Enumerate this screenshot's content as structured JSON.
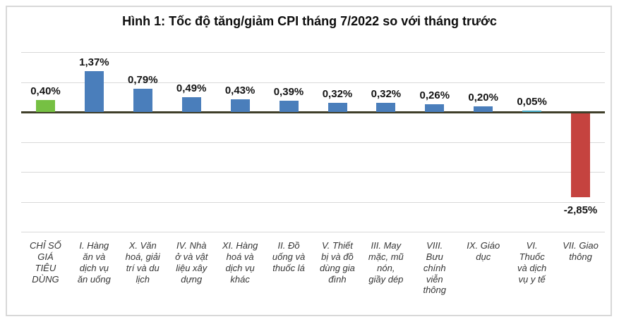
{
  "figure": {
    "title": "Hình 1: Tốc độ tăng/giảm CPI tháng 7/2022 so với tháng trước"
  },
  "chart_data": {
    "type": "bar",
    "title": "Hình 1: Tốc độ tăng/giảm CPI tháng 7/2022 so với tháng trước",
    "xlabel": "",
    "ylabel": "",
    "unit": "%",
    "decimal_separator": ",",
    "grid": true,
    "legend": false,
    "ylim": [
      -4,
      2.15
    ],
    "gridline_values": [
      2,
      1,
      -1,
      -2,
      -3,
      -4
    ],
    "categories": [
      "CHỈ SỐ GIÁ TIÊU DÙNG",
      "I. Hàng ăn và dịch vụ ăn uống",
      "X. Văn hoá, giải trí và du lịch",
      "IV. Nhà ở và vật liệu xây dựng",
      "XI. Hàng hoá và dịch vụ khác",
      "II. Đồ uống và thuốc lá",
      "V. Thiết bị và đồ dùng gia đình",
      "III. May mặc, mũ nón, giầy dép",
      "VIII. Bưu chính viễn thông",
      "IX. Giáo dục",
      "VI. Thuốc và dịch vụ y tế",
      "VII. Giao thông"
    ],
    "category_label_lines": [
      [
        "CHỈ SỐ",
        "GIÁ",
        "TIÊU",
        "DÙNG"
      ],
      [
        "I. Hàng",
        "ăn và",
        "dịch vụ",
        "ăn uống"
      ],
      [
        "X. Văn",
        "hoá, giải",
        "trí và du",
        "lịch"
      ],
      [
        "IV. Nhà",
        "ở và vật",
        "liệu xây",
        "dựng"
      ],
      [
        "XI. Hàng",
        "hoá và",
        "dịch vụ",
        "khác"
      ],
      [
        "II. Đồ",
        "uống và",
        "thuốc lá"
      ],
      [
        "V. Thiết",
        "bị và đồ",
        "dùng gia",
        "đình"
      ],
      [
        "III. May",
        "mặc, mũ",
        "nón,",
        "giầy dép"
      ],
      [
        "VIII.",
        "Bưu",
        "chính",
        "viễn",
        "thông"
      ],
      [
        "IX. Giáo",
        "dục"
      ],
      [
        "VI.",
        "Thuốc",
        "và dịch",
        "vụ y tế"
      ],
      [
        "VII. Giao",
        "thông"
      ]
    ],
    "values": [
      0.4,
      1.37,
      0.79,
      0.49,
      0.43,
      0.39,
      0.32,
      0.32,
      0.26,
      0.2,
      0.05,
      -2.85
    ],
    "value_labels": [
      "0,40%",
      "1,37%",
      "0,79%",
      "0,49%",
      "0,43%",
      "0,39%",
      "0,32%",
      "0,32%",
      "0,26%",
      "0,20%",
      "0,05%",
      "-2,85%"
    ],
    "bar_colors": [
      "#76C043",
      "#4A7EBB",
      "#4A7EBB",
      "#4A7EBB",
      "#4A7EBB",
      "#4A7EBB",
      "#4A7EBB",
      "#4A7EBB",
      "#4A7EBB",
      "#4A7EBB",
      "#4EB2CE",
      "#C5433F"
    ],
    "colors": {
      "cpi_overall": "#76C043",
      "increase": "#4A7EBB",
      "slight_increase": "#4EB2CE",
      "decrease": "#C5433F",
      "axis_line": "#3F3E29",
      "gridline": "#D9D9D9",
      "frame_border": "#D8D8D8"
    }
  }
}
